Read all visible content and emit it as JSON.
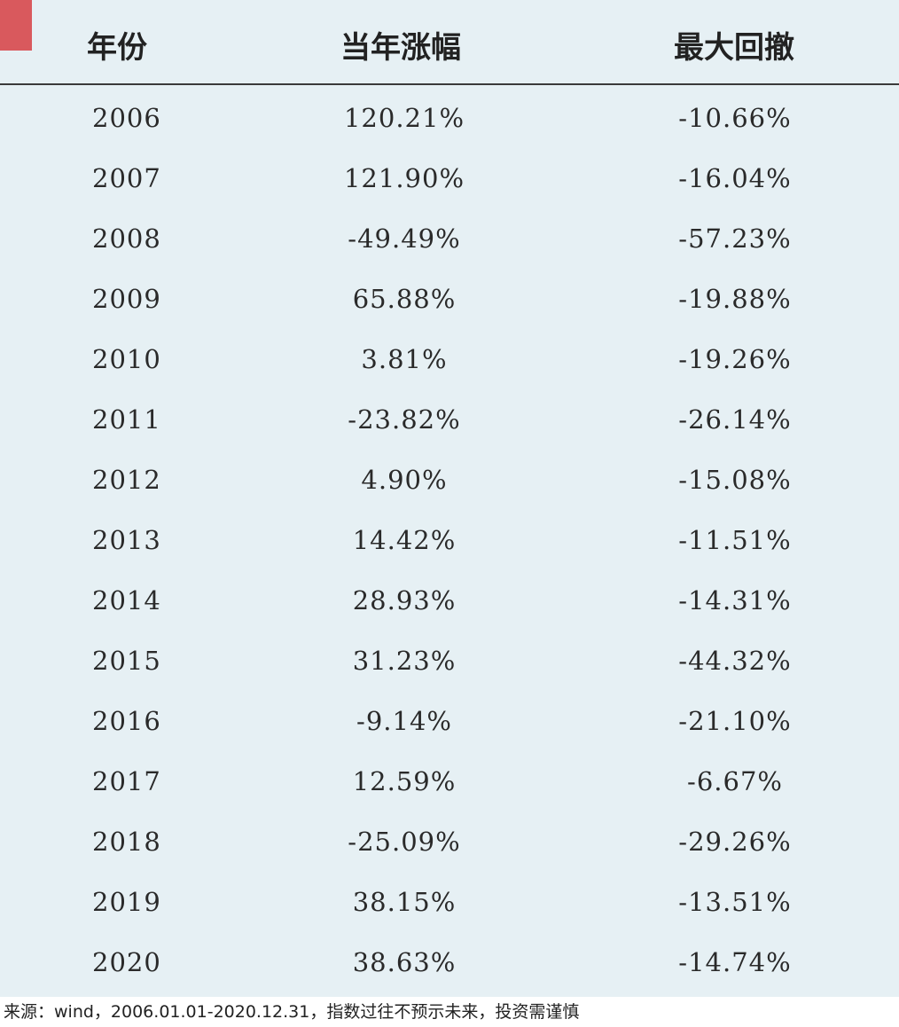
{
  "table": {
    "headers": {
      "year": "年份",
      "annual_return": "当年涨幅",
      "max_drawdown": "最大回撤"
    },
    "rows": [
      {
        "year": "2006",
        "annual_return": "120.21%",
        "max_drawdown": "-10.66%"
      },
      {
        "year": "2007",
        "annual_return": "121.90%",
        "max_drawdown": "-16.04%"
      },
      {
        "year": "2008",
        "annual_return": "-49.49%",
        "max_drawdown": "-57.23%"
      },
      {
        "year": "2009",
        "annual_return": "65.88%",
        "max_drawdown": "-19.88%"
      },
      {
        "year": "2010",
        "annual_return": "3.81%",
        "max_drawdown": "-19.26%"
      },
      {
        "year": "2011",
        "annual_return": "-23.82%",
        "max_drawdown": "-26.14%"
      },
      {
        "year": "2012",
        "annual_return": "4.90%",
        "max_drawdown": "-15.08%"
      },
      {
        "year": "2013",
        "annual_return": "14.42%",
        "max_drawdown": "-11.51%"
      },
      {
        "year": "2014",
        "annual_return": "28.93%",
        "max_drawdown": "-14.31%"
      },
      {
        "year": "2015",
        "annual_return": "31.23%",
        "max_drawdown": "-44.32%"
      },
      {
        "year": "2016",
        "annual_return": "-9.14%",
        "max_drawdown": "-21.10%"
      },
      {
        "year": "2017",
        "annual_return": "12.59%",
        "max_drawdown": "-6.67%"
      },
      {
        "year": "2018",
        "annual_return": "-25.09%",
        "max_drawdown": "-29.26%"
      },
      {
        "year": "2019",
        "annual_return": "38.15%",
        "max_drawdown": "-13.51%"
      },
      {
        "year": "2020",
        "annual_return": "38.63%",
        "max_drawdown": "-14.74%"
      }
    ]
  },
  "footer": {
    "source_note": "来源：wind，2006.01.01-2020.12.31，指数过往不预示未来，投资需谨慎"
  },
  "colors": {
    "panel_background": "#e6f0f4",
    "accent_block": "#d9595d",
    "header_rule": "#3a3a3a"
  }
}
